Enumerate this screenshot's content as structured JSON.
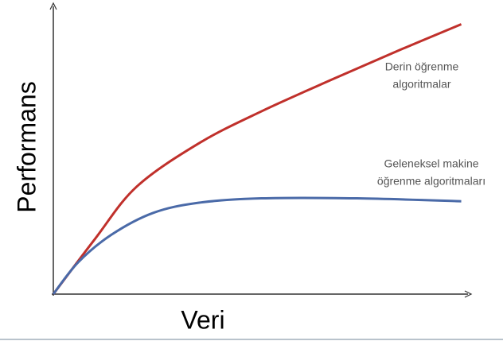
{
  "chart_data": {
    "type": "line",
    "xlabel": "Veri",
    "ylabel": "Performans",
    "xlim": [
      0,
      100
    ],
    "ylim": [
      0,
      100
    ],
    "series": [
      {
        "name": "Derin öğrenme algoritmalar",
        "color": "#c0302b",
        "x": [
          0,
          10,
          20,
          35,
          50,
          67,
          83,
          98
        ],
        "values": [
          0,
          19,
          37,
          52,
          63,
          74,
          84,
          93
        ]
      },
      {
        "name": "Geleneksel makine öğrenme algoritmaları",
        "color": "#4a6aa8",
        "x": [
          0,
          6,
          14,
          24,
          35,
          50,
          73,
          98
        ],
        "values": [
          0,
          11,
          20.5,
          28,
          31.5,
          33,
          33,
          32
        ]
      }
    ],
    "annotations": [
      {
        "series": 0,
        "lines": [
          "Derin öğrenme",
          "algoritmalar"
        ]
      },
      {
        "series": 1,
        "lines": [
          "Geleneksel makine",
          "öğrenme algoritmaları"
        ]
      }
    ]
  }
}
